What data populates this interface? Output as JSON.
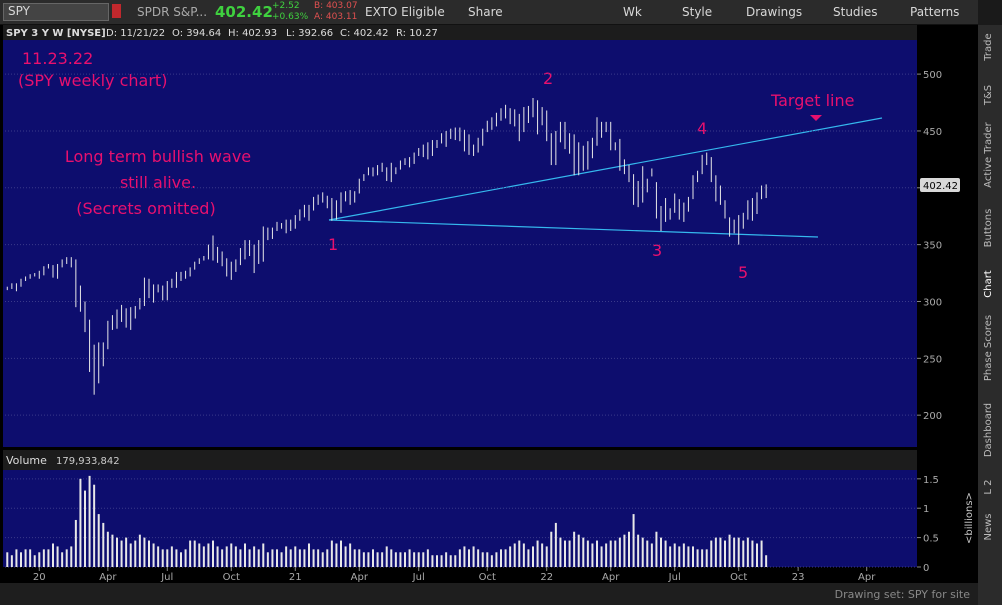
{
  "toolbar": {
    "symbol": "SPY",
    "description": "SPDR S&P...",
    "last": "402.42",
    "change": "+2.52",
    "change_pct": "+0.63%",
    "bid": "B: 403.07",
    "ask": "A: 403.11",
    "exto": "EXTO Eligible",
    "share": "Share",
    "period": "Wk",
    "style": "Style",
    "drawings": "Drawings",
    "studies": "Studies",
    "patterns": "Patterns"
  },
  "chart_header": [
    "SPY 3 Y W [NYSE]",
    "D: 11/21/22",
    "O: 394.64",
    "H: 402.93",
    "L: 392.66",
    "C: 402.42",
    "R: 10.27"
  ],
  "chart_data": [
    {
      "type": "ohlc",
      "color": "#e8e8e8",
      "last_price": 402.42,
      "annotations": [
        "11.23.22",
        "(SPY weekly chart)",
        "Long term bullish wave",
        "still alive.",
        "(Secrets omitted)",
        "Target line",
        "1",
        "2",
        "3",
        "4",
        "5"
      ],
      "high": [
        313,
        316,
        316,
        320,
        322,
        324,
        325,
        327,
        331,
        333,
        332,
        333,
        337,
        339,
        339,
        337,
        314,
        300,
        284,
        262,
        264,
        264,
        283,
        288,
        293,
        297,
        294,
        295,
        296,
        303,
        321,
        320,
        315,
        315,
        314,
        318,
        320,
        326,
        326,
        327,
        330,
        335,
        338,
        340,
        350,
        358,
        348,
        344,
        338,
        335,
        337,
        347,
        354,
        354,
        350,
        354,
        366,
        365,
        365,
        370,
        369,
        372,
        372,
        376,
        381,
        385,
        385,
        392,
        394,
        396,
        393,
        391,
        389,
        396,
        397,
        398,
        397,
        408,
        412,
        418,
        418,
        420,
        422,
        418,
        422,
        418,
        424,
        426,
        427,
        431,
        435,
        438,
        440,
        442,
        442,
        448,
        450,
        452,
        453,
        453,
        451,
        447,
        438,
        444,
        452,
        459,
        462,
        466,
        470,
        473,
        470,
        469,
        465,
        471,
        472,
        479,
        477,
        471,
        468,
        448,
        450,
        458,
        458,
        448,
        447,
        440,
        437,
        441,
        444,
        462,
        458,
        458,
        458,
        440,
        443,
        425,
        420,
        412,
        406,
        419,
        408,
        417,
        405,
        384,
        391,
        382,
        395,
        390,
        387,
        392,
        411,
        415,
        429,
        431,
        427,
        411,
        402,
        389,
        374,
        372,
        376,
        378,
        389,
        391,
        396,
        402,
        403
      ],
      "low": [
        310,
        311,
        309,
        313,
        318,
        320,
        322,
        320,
        323,
        329,
        321,
        320,
        330,
        333,
        330,
        295,
        291,
        273,
        238,
        218,
        228,
        243,
        258,
        275,
        276,
        282,
        277,
        275,
        285,
        293,
        296,
        303,
        299,
        308,
        301,
        301,
        312,
        312,
        318,
        320,
        322,
        328,
        333,
        336,
        337,
        336,
        334,
        331,
        322,
        319,
        326,
        332,
        337,
        340,
        325,
        333,
        335,
        354,
        355,
        362,
        364,
        360,
        362,
        364,
        371,
        374,
        371,
        380,
        385,
        387,
        382,
        371,
        372,
        378,
        388,
        385,
        387,
        395,
        406,
        411,
        410,
        411,
        414,
        406,
        405,
        412,
        416,
        420,
        418,
        421,
        428,
        427,
        425,
        428,
        435,
        439,
        436,
        443,
        442,
        441,
        432,
        429,
        428,
        431,
        437,
        449,
        451,
        454,
        459,
        461,
        456,
        454,
        441,
        449,
        457,
        462,
        447,
        455,
        441,
        420,
        420,
        440,
        434,
        430,
        411,
        411,
        415,
        416,
        426,
        437,
        444,
        449,
        433,
        433,
        415,
        412,
        405,
        385,
        383,
        387,
        396,
        410,
        373,
        362,
        370,
        372,
        378,
        372,
        370,
        379,
        390,
        405,
        412,
        420,
        405,
        388,
        385,
        373,
        357,
        360,
        350,
        364,
        372,
        371,
        377,
        390,
        391
      ],
      "xlim": [
        -0.5,
        199
      ],
      "ylim": [
        172,
        530
      ],
      "yticks": [
        200,
        250,
        300,
        350,
        400,
        450,
        500
      ],
      "grid": true
    },
    {
      "type": "bar",
      "title": "Volume",
      "value_label": "179,933,842",
      "axis_label": "<billions>",
      "color": "#e8e8e8",
      "values": [
        0.25,
        0.2,
        0.3,
        0.25,
        0.3,
        0.3,
        0.2,
        0.25,
        0.3,
        0.3,
        0.4,
        0.35,
        0.25,
        0.3,
        0.35,
        0.8,
        1.5,
        1.3,
        1.55,
        1.4,
        0.9,
        0.75,
        0.6,
        0.55,
        0.5,
        0.45,
        0.5,
        0.4,
        0.45,
        0.55,
        0.5,
        0.45,
        0.4,
        0.35,
        0.3,
        0.3,
        0.35,
        0.3,
        0.25,
        0.3,
        0.45,
        0.45,
        0.4,
        0.35,
        0.4,
        0.45,
        0.35,
        0.3,
        0.35,
        0.4,
        0.35,
        0.3,
        0.4,
        0.3,
        0.35,
        0.3,
        0.4,
        0.25,
        0.3,
        0.3,
        0.25,
        0.35,
        0.3,
        0.35,
        0.3,
        0.3,
        0.4,
        0.3,
        0.3,
        0.25,
        0.3,
        0.45,
        0.4,
        0.45,
        0.35,
        0.4,
        0.3,
        0.3,
        0.25,
        0.25,
        0.3,
        0.25,
        0.25,
        0.35,
        0.3,
        0.25,
        0.25,
        0.25,
        0.3,
        0.25,
        0.25,
        0.25,
        0.3,
        0.2,
        0.2,
        0.2,
        0.25,
        0.2,
        0.2,
        0.3,
        0.35,
        0.3,
        0.35,
        0.3,
        0.25,
        0.25,
        0.2,
        0.25,
        0.3,
        0.3,
        0.35,
        0.4,
        0.45,
        0.4,
        0.3,
        0.35,
        0.45,
        0.4,
        0.35,
        0.6,
        0.75,
        0.5,
        0.45,
        0.45,
        0.6,
        0.55,
        0.5,
        0.45,
        0.4,
        0.45,
        0.35,
        0.4,
        0.45,
        0.45,
        0.5,
        0.55,
        0.6,
        0.9,
        0.55,
        0.5,
        0.45,
        0.4,
        0.6,
        0.5,
        0.45,
        0.35,
        0.4,
        0.35,
        0.4,
        0.35,
        0.35,
        0.3,
        0.3,
        0.3,
        0.45,
        0.5,
        0.5,
        0.45,
        0.55,
        0.5,
        0.5,
        0.45,
        0.5,
        0.45,
        0.4,
        0.45,
        0.2
      ],
      "xlim": [
        -0.5,
        199
      ],
      "ylim": [
        0,
        1.65
      ],
      "yticks": [
        0,
        0.5,
        1,
        1.5
      ],
      "grid": true,
      "xticks": [
        {
          "value": 7,
          "label": "20"
        },
        {
          "value": 22,
          "label": "Apr"
        },
        {
          "value": 35,
          "label": "Jul"
        },
        {
          "value": 49,
          "label": "Oct"
        },
        {
          "value": 63,
          "label": "21"
        },
        {
          "value": 77,
          "label": "Apr"
        },
        {
          "value": 90,
          "label": "Jul"
        },
        {
          "value": 105,
          "label": "Oct"
        },
        {
          "value": 118,
          "label": "22"
        },
        {
          "value": 132,
          "label": "Apr"
        },
        {
          "value": 146,
          "label": "Jul"
        },
        {
          "value": 160,
          "label": "Oct"
        },
        {
          "value": 173,
          "label": "23"
        },
        {
          "value": 188,
          "label": "Apr"
        }
      ]
    }
  ],
  "status_bar": "Drawing set: SPY for site",
  "side_tabs": [
    "Trade",
    "T&S",
    "Active Trader",
    "Buttons",
    "Chart",
    "Phase Scores",
    "Dashboard",
    "L 2",
    "News"
  ]
}
